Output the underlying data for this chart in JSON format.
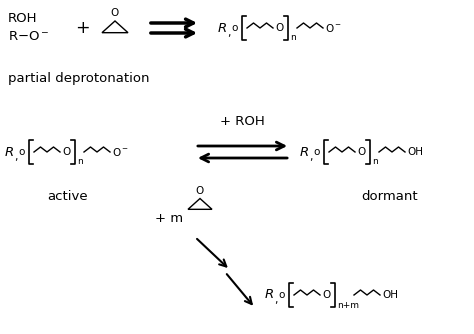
{
  "bg_color": "#ffffff",
  "figsize": [
    4.74,
    3.34
  ],
  "dpi": 100,
  "xlim": [
    0,
    474
  ],
  "ylim": [
    0,
    334
  ]
}
